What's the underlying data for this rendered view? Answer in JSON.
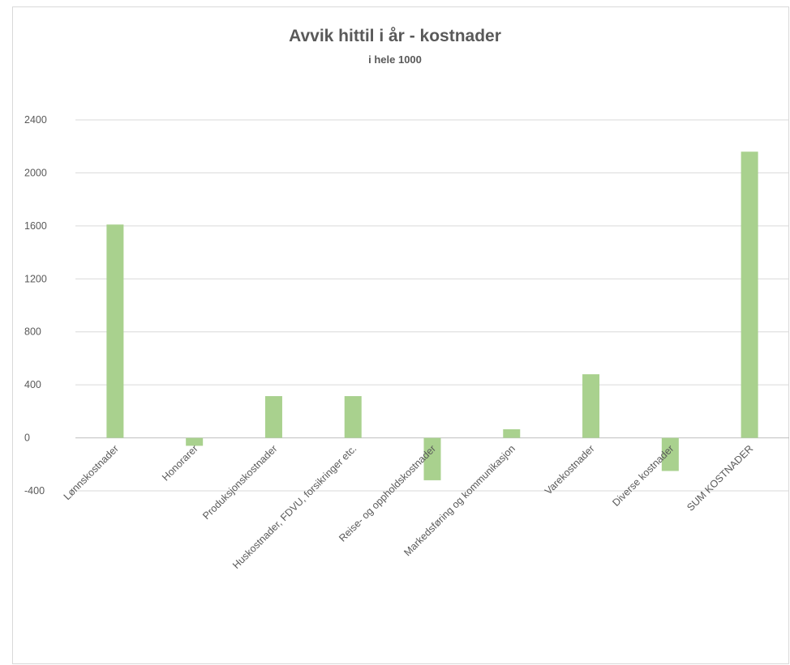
{
  "chart_data": {
    "type": "bar",
    "title": "Avvik hittil i år - kostnader",
    "subtitle": "i hele 1000",
    "xlabel": "",
    "ylabel": "",
    "categories": [
      "Lønnskostnader",
      "Honorarer",
      "Produksjonskostnader",
      "Huskostnader, FDVU, forsikringer etc.",
      "Reise- og oppholdskostnader",
      "Markedsføring og kommunikasjon",
      "Varekostnader",
      "Diverse kostnader",
      "SUM KOSTNADER"
    ],
    "series": [
      {
        "values": [
          1610,
          -60,
          315,
          315,
          -320,
          65,
          480,
          -250,
          2160
        ]
      }
    ],
    "ylim": [
      -400,
      2400
    ],
    "yticks": [
      -400,
      0,
      400,
      800,
      1200,
      1600,
      2000,
      2400
    ],
    "grid": true,
    "legend": "none",
    "colors": {
      "bar": "#a9d18e",
      "grid": "#d9d9d9",
      "text": "#595959"
    }
  }
}
